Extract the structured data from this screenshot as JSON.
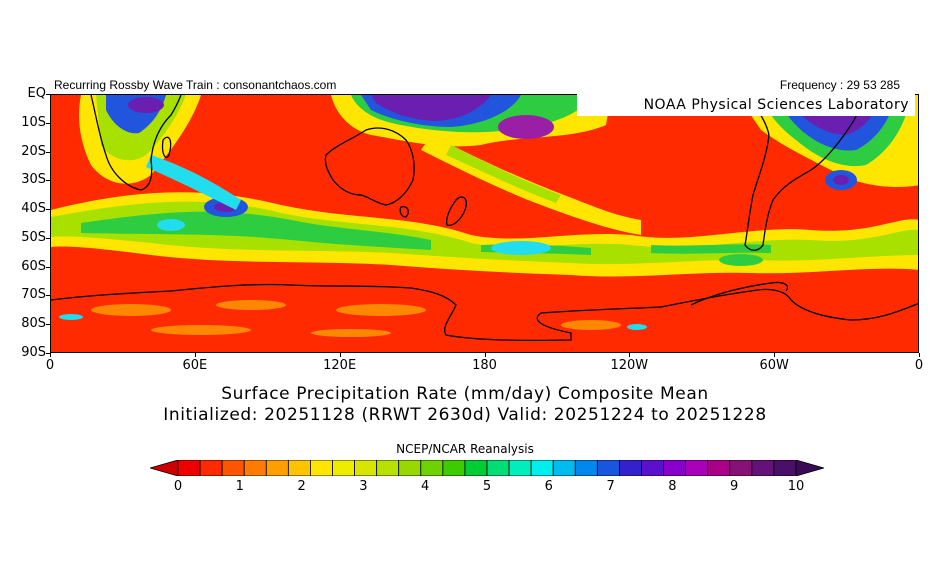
{
  "header": {
    "left_text": "Recurring Rossby Wave Train : consonantchaos.com",
    "right_text": "Frequency : 29 53 285"
  },
  "badge": {
    "text": "NOAA Physical Sciences Laboratory"
  },
  "map": {
    "lat_labels": [
      "EQ",
      "10S",
      "20S",
      "30S",
      "40S",
      "50S",
      "60S",
      "70S",
      "80S",
      "90S"
    ],
    "lon_labels": [
      "0",
      "60E",
      "120E",
      "180",
      "120W",
      "60W",
      "0"
    ]
  },
  "title": {
    "line1": "Surface Precipitation Rate (mm/day) Composite Mean",
    "line2": "Initialized: 20251128 (RRWT 2630d) Valid: 20251224 to 20251228"
  },
  "source": "NCEP/NCAR Reanalysis",
  "colorbar": {
    "labels": [
      "0",
      "1",
      "2",
      "3",
      "4",
      "5",
      "6",
      "7",
      "8",
      "9",
      "10"
    ],
    "colors": [
      "#ee0000",
      "#ff2a00",
      "#ff5500",
      "#ff7a00",
      "#ff9e00",
      "#ffc400",
      "#ffe600",
      "#f0ec00",
      "#d6e600",
      "#b8e000",
      "#96d800",
      "#6ed200",
      "#3ccc00",
      "#00cc33",
      "#00dd77",
      "#00eebb",
      "#00eeee",
      "#00bbee",
      "#0088ee",
      "#1a55dd",
      "#3322cc",
      "#5a10cc",
      "#8800cc",
      "#aa00bb",
      "#aa0088",
      "#881177",
      "#661177",
      "#4a0f66"
    ],
    "low_end_color": "#cc0000",
    "high_end_color": "#3a0a55"
  },
  "palette": {
    "dry": "#ff2a00",
    "orange": "#ff8800",
    "yellow": "#ffe600",
    "light_green": "#a8e000",
    "green": "#2ecc40",
    "cyan": "#22ddee",
    "blue": "#2255dd",
    "purple": "#6a1fb0",
    "magenta": "#9b1fa6",
    "coast": "#000000"
  }
}
